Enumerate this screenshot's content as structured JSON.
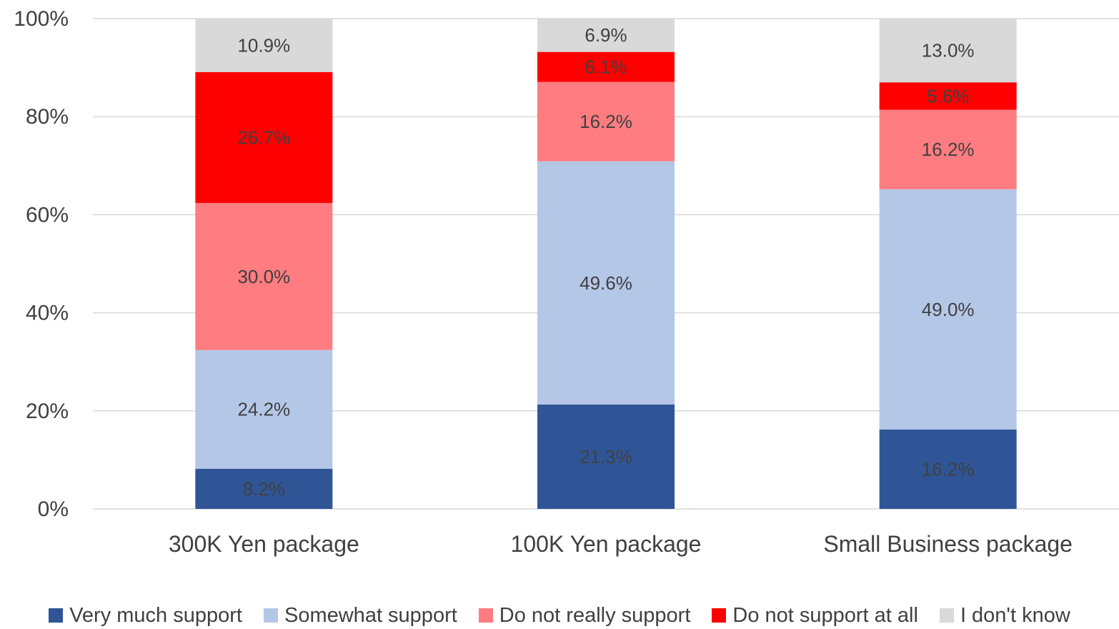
{
  "chart_data": {
    "type": "bar",
    "stacked": true,
    "categories": [
      "300K Yen package",
      "100K Yen package",
      "Small Business package"
    ],
    "series": [
      {
        "name": "Very much support",
        "color": "#2F5597",
        "values": [
          8.2,
          21.3,
          16.2
        ]
      },
      {
        "name": "Somewhat support",
        "color": "#B4C7E7",
        "values": [
          24.2,
          49.6,
          49.0
        ]
      },
      {
        "name": "Do not really support",
        "color": "#FF7C80",
        "values": [
          30.0,
          16.2,
          16.2
        ]
      },
      {
        "name": "Do not support at all",
        "color": "#FF0000",
        "values": [
          26.7,
          6.1,
          5.6
        ]
      },
      {
        "name": "I don't know",
        "color": "#D9D9D9",
        "values": [
          10.9,
          6.9,
          13.0
        ]
      }
    ],
    "data_labels": [
      [
        "8.2%",
        "21.3%",
        "16.2%"
      ],
      [
        "24.2%",
        "49.6%",
        "49.0%"
      ],
      [
        "30.0%",
        "16.2%",
        "16.2%"
      ],
      [
        "26.7%",
        "6.1%",
        "5.6%"
      ],
      [
        "10.9%",
        "6.9%",
        "13.0%"
      ]
    ],
    "ylim": [
      0,
      100
    ],
    "yticks": [
      "0%",
      "20%",
      "40%",
      "60%",
      "80%",
      "100%"
    ],
    "grid": true,
    "legend_position": "bottom"
  }
}
